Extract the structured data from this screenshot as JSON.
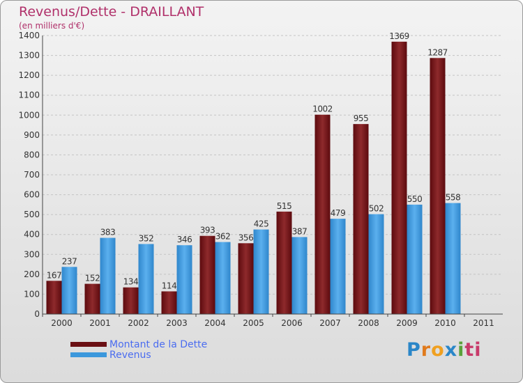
{
  "chart_data": {
    "type": "bar",
    "title": "Revenus/Dette - DRAILLANT",
    "subtitle": "(en milliers d'€)",
    "categories": [
      "2000",
      "2001",
      "2002",
      "2003",
      "2004",
      "2005",
      "2006",
      "2007",
      "2008",
      "2009",
      "2010",
      "2011"
    ],
    "series": [
      {
        "name": "Montant de la Dette",
        "color": "#7a1418",
        "values": [
          167,
          152,
          134,
          114,
          393,
          356,
          515,
          1002,
          955,
          1369,
          1287,
          null
        ]
      },
      {
        "name": "Revenus",
        "color": "#3c98dc",
        "values": [
          237,
          383,
          352,
          346,
          362,
          425,
          387,
          479,
          502,
          550,
          558,
          null
        ]
      }
    ],
    "ylim": [
      0,
      1400
    ],
    "yticks": [
      0,
      100,
      200,
      300,
      400,
      500,
      600,
      700,
      800,
      900,
      1000,
      1100,
      1200,
      1300,
      1400
    ],
    "grid": true,
    "legend": "bottom-left"
  },
  "logo": {
    "l1": "P",
    "l2": "r",
    "l3": "o",
    "l4": "x",
    "l5": "i",
    "l6": "ti"
  }
}
